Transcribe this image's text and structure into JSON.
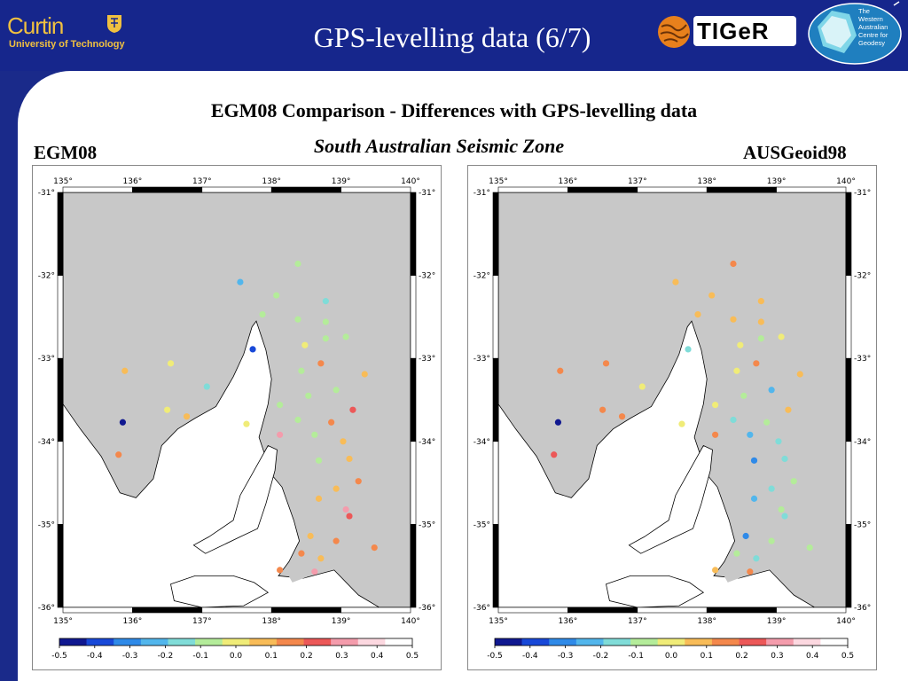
{
  "header": {
    "title": "GPS-levelling data (6/7)",
    "curtin_name": "Curtin",
    "curtin_tagline": "University of Technology",
    "tiger_name": "TIGeR",
    "wacg_text": [
      "The",
      "Western",
      "Australian",
      "Centre for",
      "Geodesy"
    ]
  },
  "main": {
    "heading": "EGM08 Comparison - Differences with GPS-levelling data",
    "subheading": "South Australian Seismic Zone",
    "left_label": "EGM08",
    "right_label": "AUSGeoid98"
  },
  "maps": {
    "lon_ticks": [
      "135°",
      "136°",
      "137°",
      "138°",
      "139°",
      "140°"
    ],
    "lat_ticks": [
      "-31°",
      "-32°",
      "-33°",
      "-34°",
      "-35°",
      "-36°"
    ],
    "lon_range": [
      135,
      140
    ],
    "lat_range": [
      -36,
      -31
    ],
    "land_color": "#ffffff",
    "sea_color": "#c8c8c8"
  },
  "colorbar": {
    "ticks": [
      "-0.5",
      "-0.4",
      "-0.3",
      "-0.2",
      "-0.1",
      "0.0",
      "0.1",
      "0.2",
      "0.3",
      "0.4",
      "0.5"
    ],
    "colors": [
      "#101890",
      "#1848d8",
      "#2f8ae8",
      "#52b6ec",
      "#80dcd8",
      "#b4ec9a",
      "#f0ec78",
      "#f8bc58",
      "#f4884c",
      "#ec5858",
      "#f49cac",
      "#fcd8e0",
      "#ffffff"
    ]
  },
  "chart_data": [
    {
      "type": "scatter",
      "title": "EGM08",
      "xlabel": "",
      "ylabel": "",
      "xlim": [
        135,
        140
      ],
      "ylim": [
        -36,
        -31
      ],
      "points": [
        {
          "lon": 138.38,
          "lat": -31.86,
          "v": -0.05
        },
        {
          "lon": 137.55,
          "lat": -32.08,
          "v": -0.2
        },
        {
          "lon": 138.07,
          "lat": -32.24,
          "v": -0.08
        },
        {
          "lon": 137.87,
          "lat": -32.47,
          "v": -0.06
        },
        {
          "lon": 138.78,
          "lat": -32.31,
          "v": -0.15
        },
        {
          "lon": 138.38,
          "lat": -32.53,
          "v": -0.05
        },
        {
          "lon": 138.78,
          "lat": -32.56,
          "v": -0.05
        },
        {
          "lon": 137.73,
          "lat": -32.89,
          "v": -0.35
        },
        {
          "lon": 138.48,
          "lat": -32.84,
          "v": -0.03
        },
        {
          "lon": 138.78,
          "lat": -32.76,
          "v": -0.1
        },
        {
          "lon": 139.07,
          "lat": -32.74,
          "v": -0.07
        },
        {
          "lon": 138.71,
          "lat": -33.06,
          "v": 0.12
        },
        {
          "lon": 138.43,
          "lat": -33.15,
          "v": -0.04
        },
        {
          "lon": 139.34,
          "lat": -33.19,
          "v": 0.1
        },
        {
          "lon": 136.55,
          "lat": -33.06,
          "v": -0.03
        },
        {
          "lon": 135.89,
          "lat": -33.15,
          "v": 0.05
        },
        {
          "lon": 137.07,
          "lat": -33.34,
          "v": -0.12
        },
        {
          "lon": 138.53,
          "lat": -33.45,
          "v": -0.08
        },
        {
          "lon": 138.93,
          "lat": -33.38,
          "v": -0.06
        },
        {
          "lon": 138.12,
          "lat": -33.56,
          "v": -0.05
        },
        {
          "lon": 139.17,
          "lat": -33.62,
          "v": 0.2
        },
        {
          "lon": 136.5,
          "lat": -33.62,
          "v": 0.02
        },
        {
          "lon": 136.78,
          "lat": -33.7,
          "v": 0.08
        },
        {
          "lon": 138.38,
          "lat": -33.74,
          "v": -0.06
        },
        {
          "lon": 138.86,
          "lat": -33.77,
          "v": 0.12
        },
        {
          "lon": 135.86,
          "lat": -33.77,
          "v": -0.48
        },
        {
          "lon": 137.64,
          "lat": -33.79,
          "v": 0.03
        },
        {
          "lon": 138.62,
          "lat": -33.92,
          "v": -0.04
        },
        {
          "lon": 138.12,
          "lat": -33.92,
          "v": 0.3
        },
        {
          "lon": 139.03,
          "lat": -34.0,
          "v": 0.05
        },
        {
          "lon": 135.8,
          "lat": -34.16,
          "v": 0.12
        },
        {
          "lon": 139.12,
          "lat": -34.21,
          "v": 0.05
        },
        {
          "lon": 138.68,
          "lat": -34.23,
          "v": -0.04
        },
        {
          "lon": 139.25,
          "lat": -34.48,
          "v": 0.12
        },
        {
          "lon": 138.93,
          "lat": -34.57,
          "v": 0.07
        },
        {
          "lon": 138.68,
          "lat": -34.69,
          "v": 0.04
        },
        {
          "lon": 139.07,
          "lat": -34.82,
          "v": 0.28
        },
        {
          "lon": 139.12,
          "lat": -34.9,
          "v": 0.22
        },
        {
          "lon": 138.56,
          "lat": -35.14,
          "v": 0.07
        },
        {
          "lon": 138.93,
          "lat": -35.2,
          "v": 0.12
        },
        {
          "lon": 139.48,
          "lat": -35.28,
          "v": 0.15
        },
        {
          "lon": 138.43,
          "lat": -35.35,
          "v": 0.12
        },
        {
          "lon": 138.71,
          "lat": -35.41,
          "v": 0.08
        },
        {
          "lon": 138.12,
          "lat": -35.55,
          "v": 0.15
        },
        {
          "lon": 138.62,
          "lat": -35.57,
          "v": 0.32
        }
      ]
    },
    {
      "type": "scatter",
      "title": "AUSGeoid98",
      "xlabel": "",
      "ylabel": "",
      "xlim": [
        135,
        140
      ],
      "ylim": [
        -36,
        -31
      ],
      "points": [
        {
          "lon": 138.38,
          "lat": -31.86,
          "v": 0.15
        },
        {
          "lon": 137.55,
          "lat": -32.08,
          "v": 0.05
        },
        {
          "lon": 138.07,
          "lat": -32.24,
          "v": 0.1
        },
        {
          "lon": 137.87,
          "lat": -32.47,
          "v": 0.08
        },
        {
          "lon": 138.78,
          "lat": -32.31,
          "v": 0.05
        },
        {
          "lon": 138.38,
          "lat": -32.53,
          "v": 0.06
        },
        {
          "lon": 138.78,
          "lat": -32.56,
          "v": 0.05
        },
        {
          "lon": 137.73,
          "lat": -32.89,
          "v": -0.15
        },
        {
          "lon": 138.48,
          "lat": -32.84,
          "v": 0.03
        },
        {
          "lon": 138.78,
          "lat": -32.76,
          "v": -0.04
        },
        {
          "lon": 139.07,
          "lat": -32.74,
          "v": 0.02
        },
        {
          "lon": 138.71,
          "lat": -33.06,
          "v": 0.12
        },
        {
          "lon": 138.43,
          "lat": -33.15,
          "v": -0.02
        },
        {
          "lon": 139.34,
          "lat": -33.19,
          "v": 0.04
        },
        {
          "lon": 136.55,
          "lat": -33.06,
          "v": 0.12
        },
        {
          "lon": 135.89,
          "lat": -33.15,
          "v": 0.12
        },
        {
          "lon": 137.07,
          "lat": -33.34,
          "v": -0.02
        },
        {
          "lon": 138.53,
          "lat": -33.45,
          "v": -0.08
        },
        {
          "lon": 138.93,
          "lat": -33.38,
          "v": -0.2
        },
        {
          "lon": 138.12,
          "lat": -33.56,
          "v": -0.03
        },
        {
          "lon": 139.17,
          "lat": -33.62,
          "v": 0.04
        },
        {
          "lon": 136.5,
          "lat": -33.62,
          "v": 0.12
        },
        {
          "lon": 136.78,
          "lat": -33.7,
          "v": 0.18
        },
        {
          "lon": 138.38,
          "lat": -33.74,
          "v": -0.15
        },
        {
          "lon": 138.86,
          "lat": -33.77,
          "v": -0.06
        },
        {
          "lon": 135.86,
          "lat": -33.77,
          "v": -0.48
        },
        {
          "lon": 137.64,
          "lat": -33.79,
          "v": 0.03
        },
        {
          "lon": 138.62,
          "lat": -33.92,
          "v": -0.25
        },
        {
          "lon": 138.12,
          "lat": -33.92,
          "v": 0.12
        },
        {
          "lon": 139.03,
          "lat": -34.0,
          "v": -0.12
        },
        {
          "lon": 135.8,
          "lat": -34.16,
          "v": 0.25
        },
        {
          "lon": 139.12,
          "lat": -34.21,
          "v": -0.15
        },
        {
          "lon": 138.68,
          "lat": -34.23,
          "v": -0.3
        },
        {
          "lon": 139.25,
          "lat": -34.48,
          "v": -0.08
        },
        {
          "lon": 138.93,
          "lat": -34.57,
          "v": -0.18
        },
        {
          "lon": 138.68,
          "lat": -34.69,
          "v": -0.25
        },
        {
          "lon": 139.07,
          "lat": -34.82,
          "v": -0.05
        },
        {
          "lon": 139.12,
          "lat": -34.9,
          "v": -0.12
        },
        {
          "lon": 138.56,
          "lat": -35.14,
          "v": -0.28
        },
        {
          "lon": 138.93,
          "lat": -35.2,
          "v": -0.06
        },
        {
          "lon": 139.48,
          "lat": -35.28,
          "v": -0.05
        },
        {
          "lon": 138.43,
          "lat": -35.35,
          "v": -0.1
        },
        {
          "lon": 138.71,
          "lat": -35.41,
          "v": -0.12
        },
        {
          "lon": 138.12,
          "lat": -35.55,
          "v": 0.07
        },
        {
          "lon": 138.62,
          "lat": -35.57,
          "v": 0.15
        }
      ]
    }
  ]
}
